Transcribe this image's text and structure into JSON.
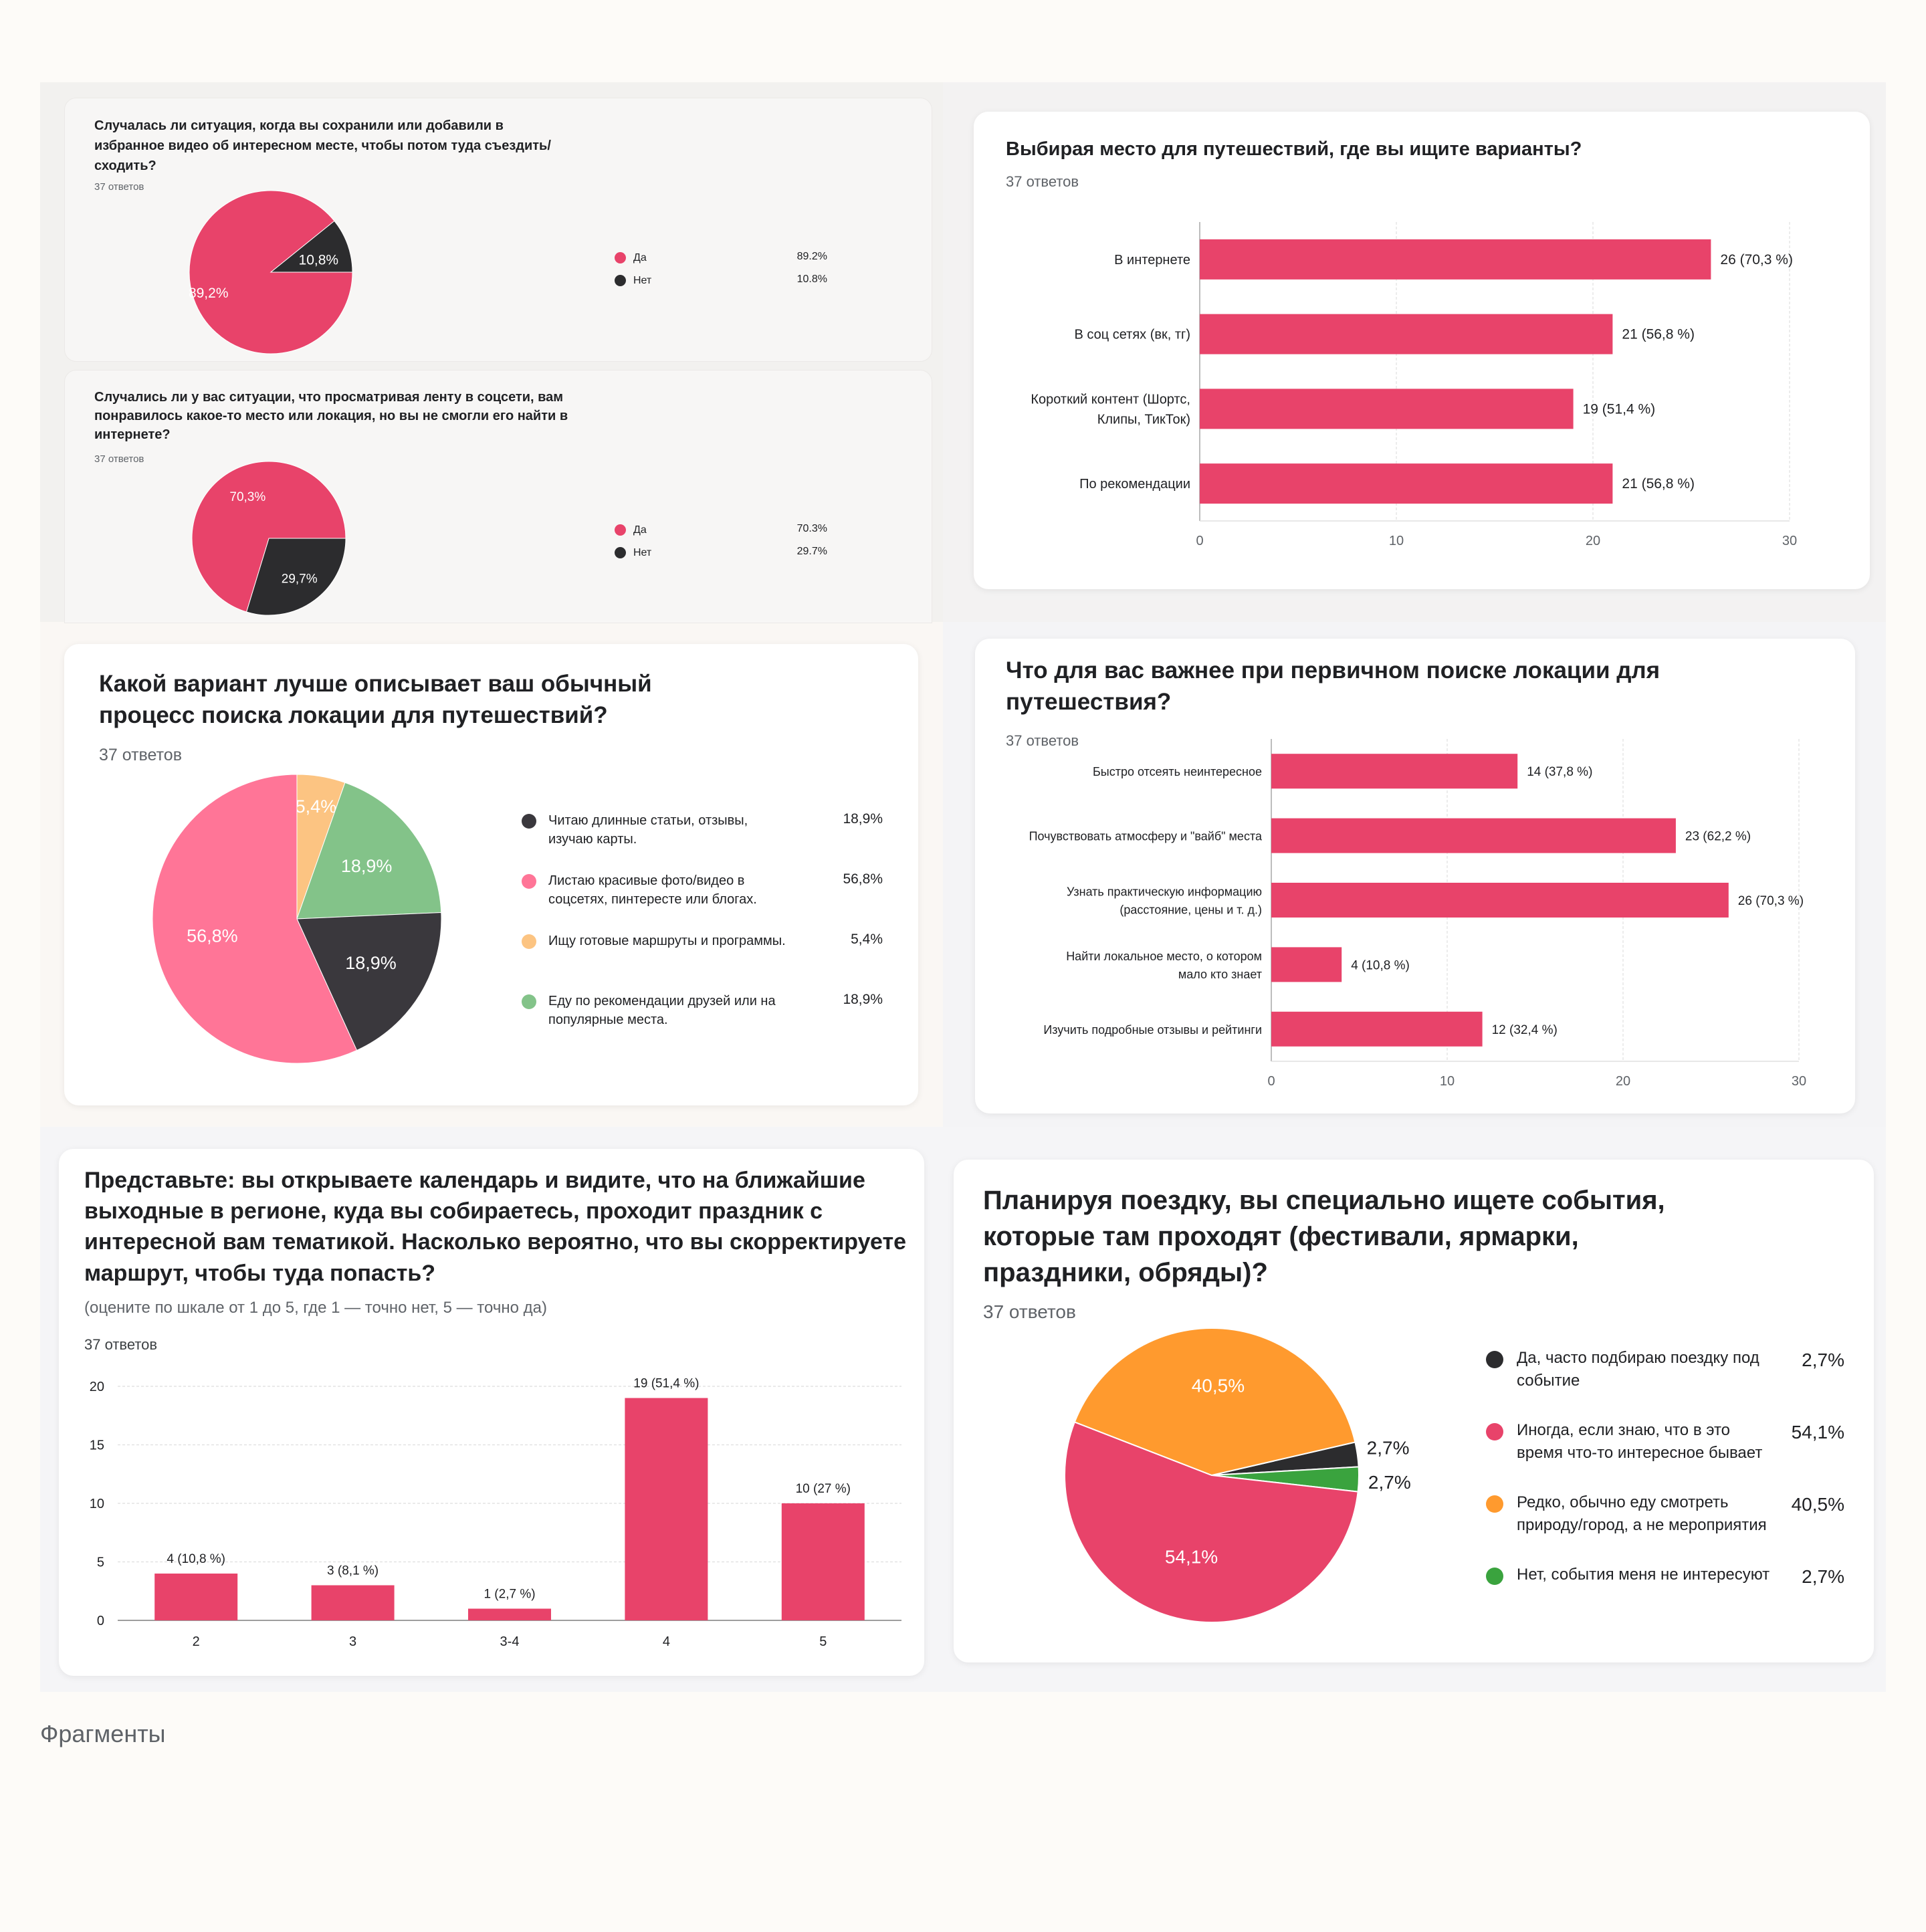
{
  "colors": {
    "pink": "#e8436a",
    "dark": "#2c2c2e",
    "pie3_dark": "#3a383d",
    "pie3_pink": "#ff7597",
    "pie3_yellow": "#fcc482",
    "pie3_green": "#83c389",
    "orange": "#ff9a2e",
    "green": "#3aa33e"
  },
  "footer": "Фрагменты",
  "c1": {
    "question": "Случалась ли ситуация, когда вы сохранили или добавили в избранное видео об интересном месте, чтобы потом туда съездить/сходить?",
    "count": "37 ответов",
    "slice_labels": [
      "89,2%",
      "10,8%"
    ],
    "legend": [
      {
        "label": "Да",
        "value": "89.2%",
        "color": "#e8436a"
      },
      {
        "label": "Нет",
        "value": "10.8%",
        "color": "#2c2c2e"
      }
    ]
  },
  "c2": {
    "question": "Случались ли у вас ситуации, что просматривая ленту в соцсети, вам понравилось какое-то место или локация, но вы не смогли его найти в интернете?",
    "count": "37 ответов",
    "slice_labels": [
      "70,3%",
      "29,7%"
    ],
    "legend": [
      {
        "label": "Да",
        "value": "70.3%",
        "color": "#e8436a"
      },
      {
        "label": "Нет",
        "value": "29.7%",
        "color": "#2c2c2e"
      }
    ]
  },
  "c3": {
    "question": "Выбирая место для путешествий, где вы ищите варианты?",
    "count": "37 ответов",
    "categories": [
      "В интернете",
      "В соц сетях (вк, тг)",
      "Короткий контент (Шортс, Клипы, ТикТок)",
      "По рекомендации"
    ],
    "value_labels": [
      "26 (70,3 %)",
      "21 (56,8 %)",
      "19 (51,4 %)",
      "21 (56,8 %)"
    ],
    "ticks": [
      "0",
      "10",
      "20",
      "30"
    ]
  },
  "c4": {
    "question": "Какой вариант лучше описывает ваш обычный процесс поиска локации для путешествий?",
    "count": "37 ответов",
    "slice_labels": [
      "5,4%",
      "18,9%",
      "18,9%",
      "56,8%"
    ],
    "legend": [
      {
        "label": "Читаю длинные статьи, отзывы, изучаю карты.",
        "value": "18,9%",
        "color": "#3a383d"
      },
      {
        "label": "Листаю красивые фото/видео в соцсетях, пинтересте или блогах.",
        "value": "56,8%",
        "color": "#ff7597"
      },
      {
        "label": "Ищу готовые маршруты и программы.",
        "value": "5,4%",
        "color": "#fcc482"
      },
      {
        "label": "Еду по рекомендации друзей или на популярные места.",
        "value": "18,9%",
        "color": "#83c389"
      }
    ]
  },
  "c5": {
    "question": "Что для вас важнее при первичном поиске локации для путешествия?",
    "count": "37 ответов",
    "categories": [
      "Быстро отсеять неинтересное",
      "Почувствовать атмосферу и \"вайб\" места",
      "Узнать практическую информацию (расстояние, цены и т. д.)",
      "Найти локальное место, о котором мало кто знает",
      "Изучить подробные отзывы и рейтинги"
    ],
    "value_labels": [
      "14 (37,8 %)",
      "23 (62,2 %)",
      "26 (70,3 %)",
      "4 (10,8 %)",
      "12 (32,4 %)"
    ],
    "ticks": [
      "0",
      "10",
      "20",
      "30"
    ]
  },
  "c6": {
    "question": "Представьте: вы открываете календарь и видите, что на ближайшие выходные в регионе, куда вы собираетесь, проходит праздник с интересной вам тематикой. Насколько вероятно, что вы скорректируете маршрут, чтобы туда попасть?",
    "subtitle": "(оцените по шкале от 1 до 5, где 1 — точно нет, 5 — точно да)",
    "count": "37 ответов",
    "categories": [
      "2",
      "3",
      "3-4",
      "4",
      "5"
    ],
    "value_labels": [
      "4 (10,8 %)",
      "3 (8,1 %)",
      "1 (2,7 %)",
      "19 (51,4 %)",
      "10 (27 %)"
    ],
    "ticks": [
      "0",
      "5",
      "10",
      "15",
      "20"
    ]
  },
  "c7": {
    "question": "Планируя поездку, вы специально ищете события, которые там проходят (фестивали, ярмарки, праздники, обряды)?",
    "count": "37 ответов",
    "slice_labels": [
      "40,5%",
      "2,7%",
      "2,7%",
      "54,1%"
    ],
    "legend": [
      {
        "label": "Да, часто подбираю поездку под событие",
        "value": "2,7%",
        "color": "#2c2c2e"
      },
      {
        "label": "Иногда, если знаю, что в это время что-то интересное бывает",
        "value": "54,1%",
        "color": "#e8436a"
      },
      {
        "label": "Редко, обычно еду смотреть природу/город, а не мероприятия",
        "value": "40,5%",
        "color": "#ff9a2e"
      },
      {
        "label": "Нет, события меня не интересуют",
        "value": "2,7%",
        "color": "#3aa33e"
      }
    ]
  },
  "chart_data": [
    {
      "type": "pie",
      "title": "Случалась ли ситуация, когда вы сохранили или добавили в избранное видео об интересном месте, чтобы потом туда съездить/сходить?",
      "labels": [
        "Да",
        "Нет"
      ],
      "values": [
        89.2,
        10.8
      ]
    },
    {
      "type": "pie",
      "title": "Случались ли у вас ситуации, что просматривая ленту в соцсети, вам понравилось какое-то место или локация, но вы не смогли его найти в интернете?",
      "labels": [
        "Да",
        "Нет"
      ],
      "values": [
        70.3,
        29.7
      ]
    },
    {
      "type": "bar",
      "orientation": "horizontal",
      "title": "Выбирая место для путешествий, где вы ищите варианты?",
      "categories": [
        "В интернете",
        "В соц сетях (вк, тг)",
        "Короткий контент (Шортс, Клипы, ТикТок)",
        "По рекомендации"
      ],
      "values": [
        26,
        21,
        19,
        21
      ],
      "percents": [
        70.3,
        56.8,
        51.4,
        56.8
      ],
      "xlim": [
        0,
        30
      ],
      "grid": true
    },
    {
      "type": "pie",
      "title": "Какой вариант лучше описывает ваш обычный процесс поиска локации для путешествий?",
      "labels": [
        "Читаю длинные статьи, отзывы, изучаю карты.",
        "Листаю красивые фото/видео в соцсетях, пинтересте или блогах.",
        "Ищу готовые маршруты и программы.",
        "Еду по рекомендации друзей или на популярные места."
      ],
      "values": [
        18.9,
        56.8,
        5.4,
        18.9
      ]
    },
    {
      "type": "bar",
      "orientation": "horizontal",
      "title": "Что для вас важнее при первичном поиске локации для путешествия?",
      "categories": [
        "Быстро отсеять неинтересное",
        "Почувствовать атмосферу и \"вайб\" места",
        "Узнать практическую информацию (расстояние, цены и т. д.)",
        "Найти локальное место, о котором мало кто знает",
        "Изучить подробные отзывы и рейтинги"
      ],
      "values": [
        14,
        23,
        26,
        4,
        12
      ],
      "percents": [
        37.8,
        62.2,
        70.3,
        10.8,
        32.4
      ],
      "xlim": [
        0,
        30
      ],
      "grid": true
    },
    {
      "type": "bar",
      "orientation": "vertical",
      "title": "Представьте: вы открываете календарь и видите, что на ближайшие выходные в регионе, куда вы собираетесь, проходит праздник с интересной вам тематикой. Насколько вероятно, что вы скорректируете маршрут, чтобы туда попасть?",
      "categories": [
        "2",
        "3",
        "3-4",
        "4",
        "5"
      ],
      "values": [
        4,
        3,
        1,
        19,
        10
      ],
      "percents": [
        10.8,
        8.1,
        2.7,
        51.4,
        27
      ],
      "ylim": [
        0,
        20
      ],
      "grid": true
    },
    {
      "type": "pie",
      "title": "Планируя поездку, вы специально ищете события, которые там проходят (фестивали, ярмарки, праздники, обряды)?",
      "labels": [
        "Да, часто подбираю поездку под событие",
        "Иногда, если знаю, что в это время что-то интересное бывает",
        "Редко, обычно еду смотреть природу/город, а не мероприятия",
        "Нет, события меня не интересуют"
      ],
      "values": [
        2.7,
        54.1,
        40.5,
        2.7
      ]
    }
  ]
}
